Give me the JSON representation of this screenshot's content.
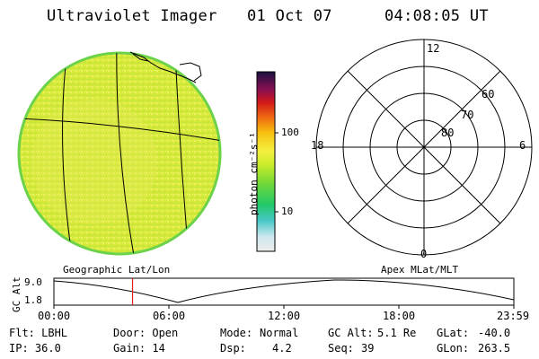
{
  "header": {
    "title": "Ultraviolet Imager",
    "date": "01 Oct 07",
    "time": "04:08:05 UT"
  },
  "colorbar": {
    "label": "photon cm⁻²s⁻¹",
    "ticks": [
      "100",
      "10"
    ]
  },
  "polar_plot": {
    "mlt_labels": {
      "top": "12",
      "left": "18",
      "right": "6",
      "bottom": "0"
    },
    "lat_labels": [
      "60",
      "70",
      "80"
    ]
  },
  "left_caption": "Geographic Lat/Lon",
  "right_caption": "Apex MLat/MLT",
  "altitude_plot": {
    "axis_label": "GC Alt",
    "y_ticks": [
      "9.0",
      "1.8"
    ],
    "x_ticks": [
      "00:00",
      "06:00",
      "12:00",
      "18:00",
      "23:59"
    ],
    "current_time_marker_fraction": 0.171
  },
  "status": {
    "col1": {
      "row1": "Flt: LBHL",
      "row2": "IP: 36.0"
    },
    "col2": {
      "row1": "Door: Open",
      "row2": "Gain: 14"
    },
    "col3_label1": "Mode:",
    "col3_value1": "Normal",
    "col3_label2": "Dsp:",
    "col3_value2": "4.2",
    "col4_label1": "GC Alt:",
    "col4_value1": "5.1 Re",
    "col4_label2": "Seq:",
    "col4_value2": "39",
    "col5_label1": "GLat:",
    "col5_value1": "-40.0",
    "col5_label2": "GLon:",
    "col5_value2": "263.5"
  },
  "colors": {
    "disk_fill": "#d8ec38",
    "disk_edge": "#6cd24a",
    "marker": "#e02020"
  }
}
